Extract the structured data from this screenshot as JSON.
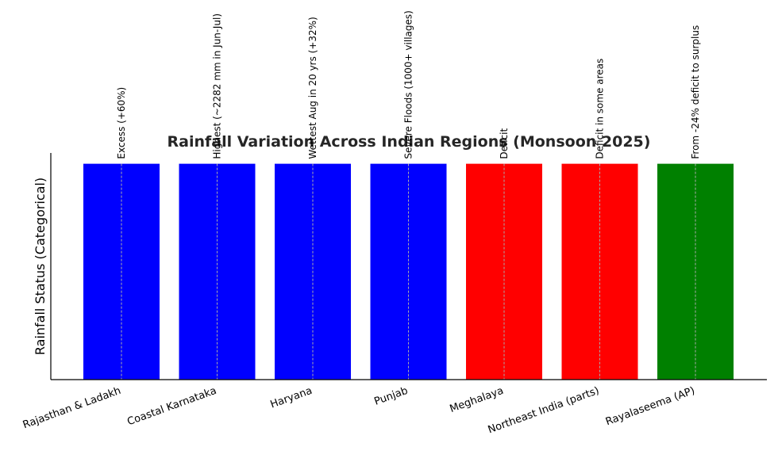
{
  "chart_data": {
    "type": "bar",
    "title": "Rainfall Variation Across Indian Regions (Monsoon 2025)",
    "xlabel": "",
    "ylabel": "Rainfall Status (Categorical)",
    "ylim": [
      0,
      1.05
    ],
    "grid": false,
    "categories": [
      "Rajasthan & Ladakh",
      "Coastal Karnataka",
      "Haryana",
      "Punjab",
      "Meghalaya",
      "Northeast India (parts)",
      "Rayalaseema (AP)"
    ],
    "values": [
      1,
      1,
      1,
      1,
      1,
      1,
      1
    ],
    "colors": [
      "#0000ff",
      "#0000ff",
      "#0000ff",
      "#0000ff",
      "#ff0000",
      "#ff0000",
      "#008000"
    ],
    "annotations": [
      "Excess (+60%)",
      "Highest (~2282 mm in Jun-Jul)",
      "Wettest Aug in 20 yrs (+32%)",
      "Severe Floods (1000+ villages)",
      "Deficit",
      "Deficit in some areas",
      "From -24% deficit to surplus"
    ]
  }
}
